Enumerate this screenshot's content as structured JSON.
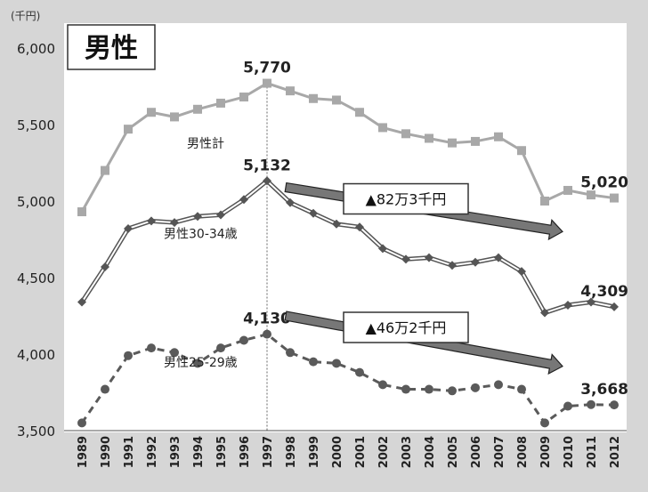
{
  "chart_data": {
    "type": "line",
    "title": "男性",
    "unit_label": "(千円)",
    "x": [
      "1989",
      "1990",
      "1991",
      "1992",
      "1993",
      "1994",
      "1995",
      "1996",
      "1997",
      "1998",
      "1999",
      "2000",
      "2001",
      "2002",
      "2003",
      "2004",
      "2005",
      "2006",
      "2007",
      "2008",
      "2009",
      "2010",
      "2011",
      "2012"
    ],
    "ylim": [
      3500,
      6000
    ],
    "yticks": [
      "3,500",
      "4,000",
      "4,500",
      "5,000",
      "5,500",
      "6,000"
    ],
    "ytick_values": [
      3500,
      4000,
      4500,
      5000,
      5500,
      6000
    ],
    "grid": false,
    "series": [
      {
        "name": "男性計",
        "color": "#a8a8a8",
        "values": [
          4930,
          5200,
          5470,
          5580,
          5550,
          5600,
          5640,
          5680,
          5770,
          5720,
          5670,
          5660,
          5580,
          5480,
          5440,
          5410,
          5380,
          5390,
          5420,
          5330,
          5000,
          5070,
          5040,
          5020
        ]
      },
      {
        "name": "男性30-34歳",
        "color": "#555555",
        "values": [
          4340,
          4570,
          4820,
          4870,
          4860,
          4900,
          4910,
          5010,
          5132,
          4990,
          4920,
          4850,
          4830,
          4690,
          4620,
          4630,
          4580,
          4600,
          4630,
          4540,
          4270,
          4320,
          4340,
          4309
        ]
      },
      {
        "name": "男性25-29歳",
        "color": "#5a5a5a",
        "values": [
          3550,
          3770,
          3990,
          4040,
          4010,
          3940,
          4040,
          4090,
          4130,
          4010,
          3950,
          3940,
          3880,
          3800,
          3770,
          3770,
          3760,
          3780,
          3800,
          3770,
          3550,
          3660,
          3670,
          3668
        ]
      }
    ],
    "point_labels": [
      {
        "series": 0,
        "index": 8,
        "text": "5,770"
      },
      {
        "series": 0,
        "index": 23,
        "text": "5,020"
      },
      {
        "series": 1,
        "index": 8,
        "text": "5,132"
      },
      {
        "series": 1,
        "index": 23,
        "text": "4,309"
      },
      {
        "series": 2,
        "index": 8,
        "text": "4,130"
      },
      {
        "series": 2,
        "index": 23,
        "text": "3,668"
      }
    ],
    "annotations": [
      {
        "text": "▲82万3千円",
        "from_year": "1998",
        "to_year": "2010"
      },
      {
        "text": "▲46万2千円",
        "from_year": "1998",
        "to_year": "2010"
      }
    ],
    "reference_line_year": "1997"
  }
}
